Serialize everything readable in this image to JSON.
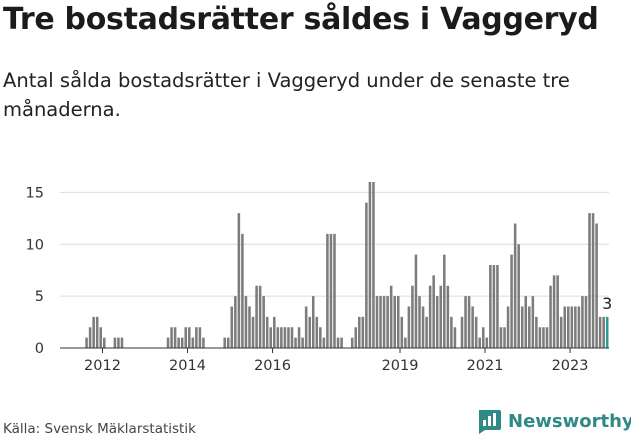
{
  "title": "Tre bostadsrätter såldes i Vaggeryd",
  "subtitle": "Antal sålda bostadsrätter i Vaggeryd under de senaste tre månaderna.",
  "source": "Källa: Svensk Mäklarstatistik",
  "brand": "Newsworthy",
  "colors": {
    "bar": "#7c7c7c",
    "highlight": "#2e9b98",
    "grid": "#dcdcdc",
    "brand": "#2f8a86"
  },
  "chart_data": {
    "type": "bar",
    "title": "Tre bostadsrätter såldes i Vaggeryd",
    "xlabel": "",
    "ylabel": "",
    "ylim": [
      0,
      16
    ],
    "yticks": [
      0,
      5,
      10,
      15
    ],
    "xticks": [
      {
        "label": "2012",
        "year": 2012
      },
      {
        "label": "2014",
        "year": 2014
      },
      {
        "label": "2016",
        "year": 2016
      },
      {
        "label": "2019",
        "year": 2019
      },
      {
        "label": "2021",
        "year": 2021
      },
      {
        "label": "2023",
        "year": 2023
      }
    ],
    "start": {
      "year": 2011,
      "month": 1
    },
    "values": [
      0,
      0,
      0,
      0,
      0,
      0,
      0,
      1,
      2,
      3,
      3,
      2,
      1,
      0,
      0,
      1,
      1,
      1,
      0,
      0,
      0,
      0,
      0,
      0,
      0,
      0,
      0,
      0,
      0,
      0,
      1,
      2,
      2,
      1,
      1,
      2,
      2,
      1,
      2,
      2,
      1,
      0,
      0,
      0,
      0,
      0,
      1,
      1,
      4,
      5,
      13,
      11,
      5,
      4,
      3,
      6,
      6,
      5,
      3,
      2,
      3,
      2,
      2,
      2,
      2,
      2,
      1,
      2,
      1,
      4,
      3,
      5,
      3,
      2,
      1,
      11,
      11,
      11,
      1,
      1,
      0,
      0,
      1,
      2,
      3,
      3,
      14,
      16,
      16,
      5,
      5,
      5,
      5,
      6,
      5,
      5,
      3,
      1,
      4,
      6,
      9,
      5,
      4,
      3,
      6,
      7,
      5,
      6,
      9,
      6,
      3,
      2,
      0,
      3,
      5,
      5,
      4,
      3,
      1,
      2,
      1,
      8,
      8,
      8,
      2,
      2,
      4,
      9,
      12,
      10,
      4,
      5,
      4,
      5,
      3,
      2,
      2,
      2,
      6,
      7,
      7,
      3,
      4,
      4,
      4,
      4,
      4,
      5,
      5,
      13,
      13,
      12,
      3,
      3,
      3
    ],
    "highlight_last": true,
    "annotation": "3"
  }
}
